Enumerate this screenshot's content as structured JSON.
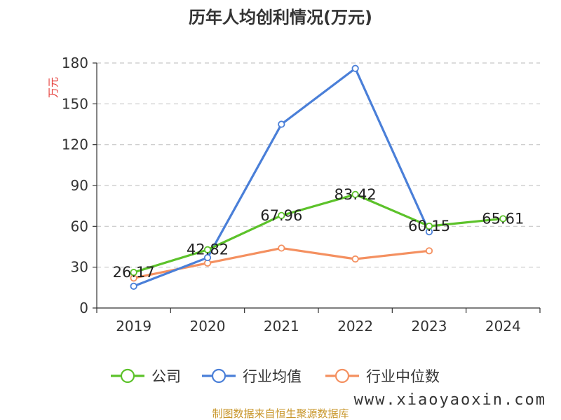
{
  "chart_data": {
    "type": "line",
    "title": "历年人均创利情况(万元)",
    "ylabel": "万元",
    "xlabel": "",
    "categories": [
      "2019",
      "2020",
      "2021",
      "2022",
      "2023",
      "2024"
    ],
    "ylim": [
      0,
      180
    ],
    "yticks": [
      0,
      30,
      60,
      90,
      120,
      150,
      180
    ],
    "grid": true,
    "legend_position": "bottom",
    "series": [
      {
        "name": "公司",
        "color": "#5cc22a",
        "values": [
          26.17,
          42.82,
          67.96,
          83.42,
          60.15,
          65.61
        ],
        "labels": [
          "26.17",
          "42.82",
          "67.96",
          "83.42",
          "60.15",
          "65.61"
        ]
      },
      {
        "name": "行业均值",
        "color": "#4a7fd8",
        "values": [
          16,
          37,
          135,
          176,
          56,
          null
        ]
      },
      {
        "name": "行业中位数",
        "color": "#f49060",
        "values": [
          22,
          33,
          44,
          36,
          42,
          null
        ]
      }
    ]
  },
  "footer": {
    "source": "制图数据来自恒生聚源数据库",
    "watermark": "www.xiaoyaoxin.com"
  }
}
